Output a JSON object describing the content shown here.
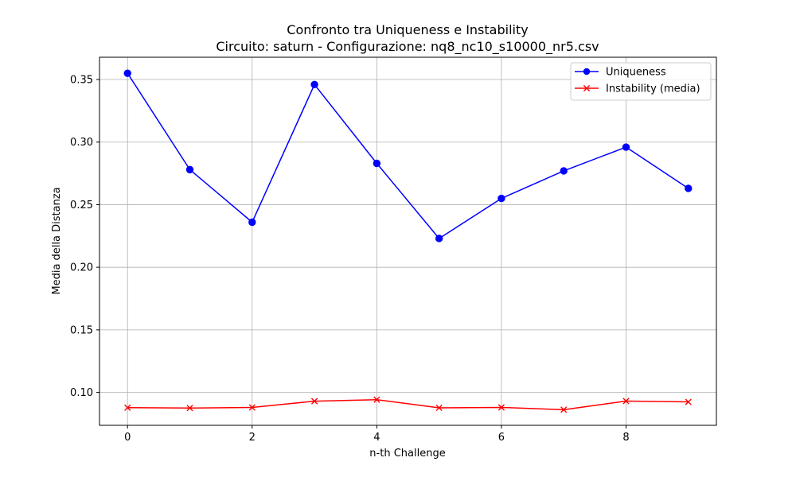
{
  "chart_data": {
    "type": "line",
    "title": "Confronto tra Uniqueness e Instability",
    "subtitle": "Circuito: saturn - Configurazione: nq8_nc10_s10000_nr5.csv",
    "xlabel": "n-th Challenge",
    "ylabel": "Media della Distanza",
    "x": [
      0,
      1,
      2,
      3,
      4,
      5,
      6,
      7,
      8,
      9
    ],
    "xlim": [
      -0.45,
      9.45
    ],
    "ylim": [
      0.0737,
      0.3678
    ],
    "xticks": [
      0,
      2,
      4,
      6,
      8
    ],
    "xtick_labels": [
      "0",
      "2",
      "4",
      "6",
      "8"
    ],
    "yticks": [
      0.1,
      0.15,
      0.2,
      0.25,
      0.3,
      0.35
    ],
    "ytick_labels": [
      "0.10",
      "0.15",
      "0.20",
      "0.25",
      "0.30",
      "0.35"
    ],
    "grid": true,
    "legend_position": "top-right",
    "series": [
      {
        "name": "Uniqueness",
        "color": "#0000ff",
        "marker": "circle",
        "values": [
          0.355,
          0.278,
          0.236,
          0.346,
          0.283,
          0.223,
          0.255,
          0.277,
          0.296,
          0.263
        ]
      },
      {
        "name": "Instability (media)",
        "color": "#ff0000",
        "marker": "x",
        "values": [
          0.0878,
          0.0875,
          0.088,
          0.093,
          0.0942,
          0.0877,
          0.088,
          0.0862,
          0.0931,
          0.0924
        ]
      }
    ]
  }
}
